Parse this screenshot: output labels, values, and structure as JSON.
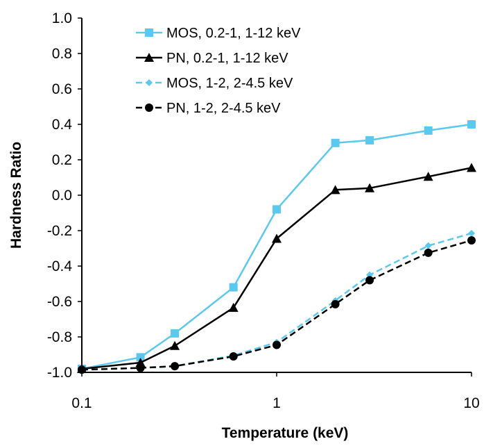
{
  "chart_data": {
    "type": "line",
    "title": "",
    "xlabel": "Temperature (keV)",
    "ylabel": "Hardness Ratio",
    "xscale": "log",
    "xlim": [
      0.1,
      10
    ],
    "ylim": [
      -1.0,
      1.0
    ],
    "x_ticks": [
      0.1,
      1,
      10
    ],
    "x_tick_labels": [
      "0.1",
      "1",
      "10"
    ],
    "y_ticks": [
      -1.0,
      -0.8,
      -0.6,
      -0.4,
      -0.2,
      0.0,
      0.2,
      0.4,
      0.6,
      0.8,
      1.0
    ],
    "y_tick_labels": [
      "-1.0",
      "-0.8",
      "-0.6",
      "-0.4",
      "-0.2",
      "0.0",
      "0.2",
      "0.4",
      "0.6",
      "0.8",
      "1.0"
    ],
    "legend_position": "top-left",
    "x": [
      0.1,
      0.2,
      0.3,
      0.6,
      1,
      2,
      3,
      6,
      10
    ],
    "series": [
      {
        "name": "MOS, 0.2-1, 1-12 keV",
        "color": "#5bc8ee",
        "marker": "square",
        "dash": "solid",
        "values": [
          -0.98,
          -0.915,
          -0.78,
          -0.52,
          -0.08,
          0.295,
          0.31,
          0.365,
          0.4
        ]
      },
      {
        "name": "PN, 0.2-1, 1-12 keV",
        "color": "#000000",
        "marker": "triangle",
        "dash": "solid",
        "values": [
          -0.98,
          -0.945,
          -0.85,
          -0.635,
          -0.245,
          0.03,
          0.04,
          0.105,
          0.155
        ]
      },
      {
        "name": "MOS, 1-2, 2-4.5 keV",
        "color": "#5bc8ee",
        "marker": "diamond",
        "dash": "dashed",
        "values": [
          -0.985,
          -0.975,
          -0.965,
          -0.905,
          -0.83,
          -0.595,
          -0.45,
          -0.285,
          -0.215
        ]
      },
      {
        "name": "PN, 1-2, 2-4.5 keV",
        "color": "#000000",
        "marker": "circle",
        "dash": "dashed",
        "values": [
          -0.985,
          -0.975,
          -0.965,
          -0.91,
          -0.845,
          -0.615,
          -0.48,
          -0.325,
          -0.255
        ]
      }
    ]
  }
}
